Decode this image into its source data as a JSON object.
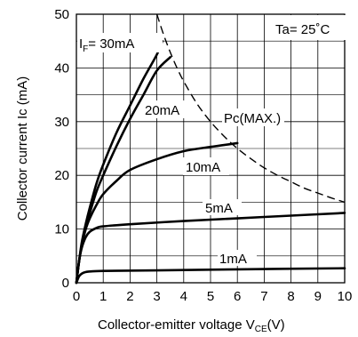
{
  "chart_data": {
    "type": "line",
    "xlabel": "Collector-emitter voltage V",
    "xlabel_sub": "CE",
    "xlabel_unit": "(V)",
    "ylabel": "Collector current Ic (mA)",
    "xlim": [
      0,
      10
    ],
    "ylim": [
      0,
      50
    ],
    "x_ticks": [
      0,
      1,
      2,
      3,
      4,
      5,
      6,
      7,
      8,
      9,
      10
    ],
    "y_ticks": [
      0,
      10,
      20,
      30,
      40,
      50
    ],
    "grid": true,
    "annotation": "Ta= 25˚C",
    "series": [
      {
        "label_prefix": "I",
        "label_sub": "F",
        "label_suffix": "= 30mA",
        "points": [
          [
            0,
            0
          ],
          [
            0.1,
            4
          ],
          [
            0.2,
            7.5
          ],
          [
            0.35,
            11
          ],
          [
            0.5,
            14
          ],
          [
            0.75,
            18.5
          ],
          [
            1,
            22
          ],
          [
            1.5,
            28
          ],
          [
            2,
            33
          ],
          [
            2.5,
            38
          ],
          [
            3,
            42.5
          ],
          [
            3.2,
            45
          ]
        ]
      },
      {
        "label": "20mA",
        "points": [
          [
            0,
            0
          ],
          [
            0.1,
            4
          ],
          [
            0.2,
            7
          ],
          [
            0.35,
            10.5
          ],
          [
            0.5,
            13
          ],
          [
            0.75,
            17
          ],
          [
            1,
            20
          ],
          [
            1.5,
            25.5
          ],
          [
            2,
            30.5
          ],
          [
            2.5,
            35
          ],
          [
            3,
            39.5
          ],
          [
            3.5,
            42
          ]
        ]
      },
      {
        "label": "10mA",
        "points": [
          [
            0,
            0
          ],
          [
            0.1,
            4
          ],
          [
            0.2,
            7
          ],
          [
            0.35,
            10
          ],
          [
            0.5,
            12
          ],
          [
            0.75,
            14.5
          ],
          [
            1,
            16.5
          ],
          [
            1.5,
            19
          ],
          [
            2,
            21
          ],
          [
            3,
            23
          ],
          [
            4,
            24.5
          ],
          [
            5,
            25.3
          ],
          [
            6,
            26
          ]
        ]
      },
      {
        "label": "5mA",
        "points": [
          [
            0,
            0
          ],
          [
            0.1,
            4
          ],
          [
            0.2,
            6.5
          ],
          [
            0.35,
            8.5
          ],
          [
            0.5,
            9.5
          ],
          [
            0.75,
            10.2
          ],
          [
            1,
            10.5
          ],
          [
            2,
            10.9
          ],
          [
            4,
            11.5
          ],
          [
            6,
            12
          ],
          [
            8,
            12.5
          ],
          [
            10,
            13
          ]
        ]
      },
      {
        "label": "1mA",
        "points": [
          [
            0,
            0
          ],
          [
            0.1,
            1.2
          ],
          [
            0.2,
            1.7
          ],
          [
            0.35,
            2
          ],
          [
            0.5,
            2.1
          ],
          [
            1,
            2.2
          ],
          [
            3,
            2.3
          ],
          [
            6,
            2.5
          ],
          [
            10,
            2.7
          ]
        ]
      }
    ],
    "pc_max_curve": {
      "label": "Pc(MAX.)",
      "points": [
        [
          3,
          50
        ],
        [
          3.25,
          46.2
        ],
        [
          3.5,
          42.9
        ],
        [
          3.75,
          40
        ],
        [
          4,
          37.5
        ],
        [
          4.5,
          33.3
        ],
        [
          5,
          30
        ],
        [
          5.5,
          27.3
        ],
        [
          6,
          25
        ],
        [
          6.5,
          23.1
        ],
        [
          7,
          21.4
        ],
        [
          7.5,
          20
        ],
        [
          8,
          18.8
        ],
        [
          8.5,
          17.6
        ],
        [
          9,
          16.7
        ],
        [
          9.5,
          15.8
        ],
        [
          10,
          15
        ]
      ]
    }
  }
}
